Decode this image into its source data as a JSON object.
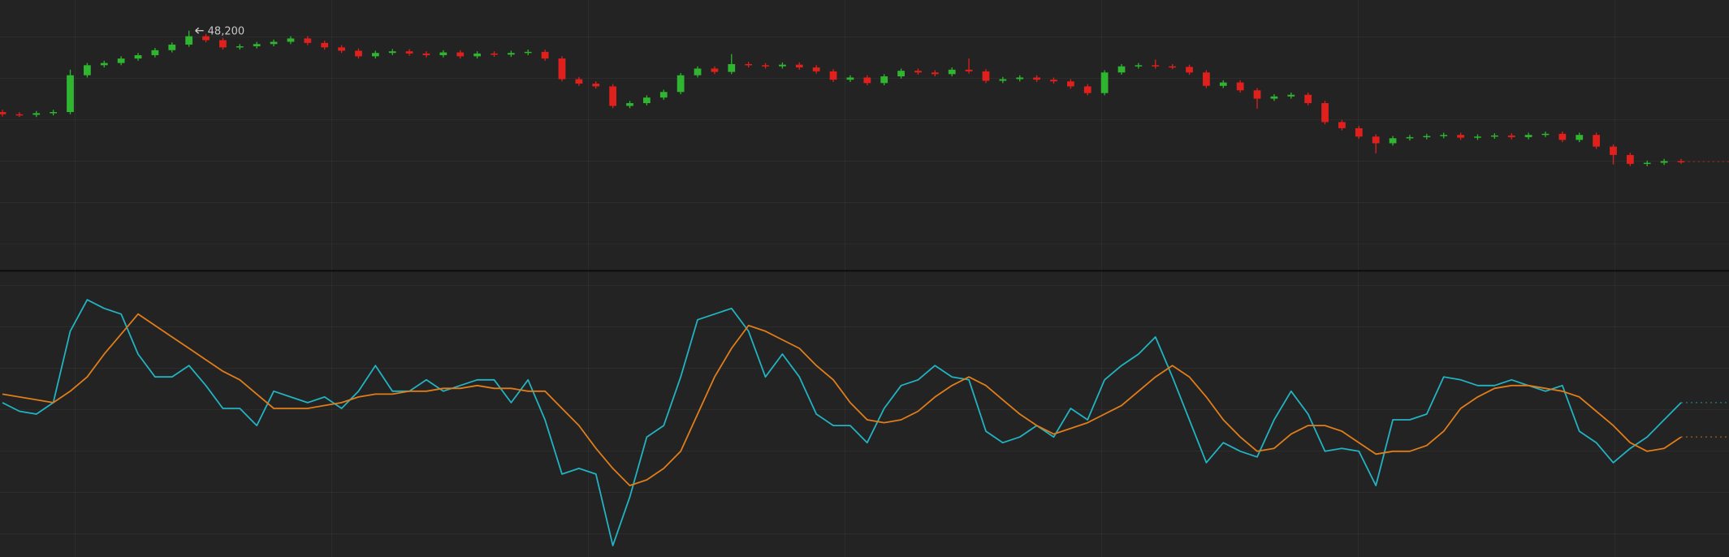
{
  "chart_data": [
    {
      "type": "candlestick",
      "up_color": "#2fb52f",
      "down_color": "#e0201c",
      "ylim": [
        43900,
        48750
      ],
      "annotations": [
        {
          "value": 48200,
          "label": "48,200"
        }
      ],
      "open": [
        46740,
        46700,
        46690,
        46720,
        46740,
        47400,
        47580,
        47620,
        47700,
        47760,
        47850,
        47950,
        48100,
        48030,
        47900,
        47920,
        47960,
        48000,
        48060,
        47980,
        47900,
        47840,
        47740,
        47800,
        47830,
        47790,
        47760,
        47810,
        47740,
        47790,
        47770,
        47800,
        47820,
        47700,
        47330,
        47250,
        47200,
        46850,
        46900,
        47000,
        47100,
        47400,
        47520,
        47460,
        47600,
        47580,
        47560,
        47590,
        47540,
        47470,
        47320,
        47360,
        47260,
        47380,
        47480,
        47450,
        47420,
        47500,
        47470,
        47300,
        47330,
        47360,
        47320,
        47290,
        47200,
        47080,
        47450,
        47560,
        47580,
        47560,
        47550,
        47450,
        47210,
        47270,
        47130,
        46980,
        47020,
        47050,
        46900,
        46560,
        46450,
        46300,
        46180,
        46270,
        46290,
        46310,
        46330,
        46280,
        46300,
        46320,
        46290,
        46330,
        46350,
        46240,
        46330,
        46120,
        45970,
        45810,
        45830,
        45860
      ],
      "high": [
        46780,
        46740,
        46760,
        46780,
        47500,
        47620,
        47660,
        47740,
        47800,
        47890,
        47990,
        48200,
        48140,
        48070,
        47960,
        48000,
        48040,
        48100,
        48100,
        48020,
        47940,
        47880,
        47840,
        47870,
        47870,
        47830,
        47850,
        47850,
        47830,
        47830,
        47840,
        47860,
        47860,
        47740,
        47370,
        47290,
        47240,
        46940,
        47040,
        47140,
        47440,
        47560,
        47560,
        47780,
        47640,
        47620,
        47630,
        47630,
        47580,
        47510,
        47400,
        47400,
        47420,
        47520,
        47520,
        47490,
        47540,
        47700,
        47510,
        47370,
        47400,
        47400,
        47360,
        47330,
        47240,
        47490,
        47600,
        47620,
        47680,
        47600,
        47590,
        47490,
        47310,
        47310,
        47170,
        47060,
        47090,
        47090,
        46940,
        46600,
        46490,
        46340,
        46310,
        46330,
        46350,
        46370,
        46370,
        46340,
        46360,
        46360,
        46370,
        46390,
        46390,
        46370,
        46370,
        46160,
        46010,
        45870,
        45900,
        45900
      ],
      "low": [
        46660,
        46650,
        46650,
        46680,
        46700,
        47360,
        47540,
        47580,
        47660,
        47720,
        47810,
        47910,
        47990,
        47860,
        47860,
        47880,
        47920,
        47960,
        47940,
        47860,
        47800,
        47700,
        47700,
        47760,
        47750,
        47720,
        47720,
        47700,
        47700,
        47730,
        47730,
        47760,
        47660,
        47290,
        47210,
        47160,
        46810,
        46810,
        46860,
        46960,
        47060,
        47360,
        47420,
        47420,
        47540,
        47520,
        47520,
        47500,
        47430,
        47280,
        47280,
        47220,
        47220,
        47340,
        47410,
        47380,
        47380,
        47430,
        47260,
        47260,
        47290,
        47280,
        47250,
        47160,
        47040,
        47040,
        47410,
        47520,
        47520,
        47510,
        47410,
        47170,
        47170,
        47090,
        46800,
        46940,
        46980,
        46860,
        46520,
        46410,
        46260,
        46000,
        46140,
        46230,
        46250,
        46270,
        46240,
        46240,
        46260,
        46250,
        46250,
        46290,
        46200,
        46200,
        46080,
        45800,
        45770,
        45770,
        45790,
        45810
      ],
      "close": [
        46700,
        46690,
        46720,
        46740,
        47400,
        47580,
        47620,
        47700,
        47760,
        47850,
        47950,
        48100,
        48030,
        47900,
        47920,
        47960,
        48000,
        48060,
        47980,
        47900,
        47840,
        47740,
        47800,
        47830,
        47790,
        47760,
        47810,
        47740,
        47790,
        47770,
        47800,
        47820,
        47700,
        47330,
        47250,
        47200,
        46850,
        46900,
        47000,
        47100,
        47400,
        47520,
        47460,
        47600,
        47580,
        47560,
        47590,
        47540,
        47470,
        47320,
        47360,
        47260,
        47380,
        47480,
        47450,
        47420,
        47500,
        47470,
        47300,
        47330,
        47360,
        47320,
        47290,
        47200,
        47080,
        47450,
        47560,
        47580,
        47560,
        47550,
        47450,
        47210,
        47270,
        47130,
        46980,
        47020,
        47050,
        46900,
        46560,
        46450,
        46300,
        46180,
        46270,
        46290,
        46310,
        46330,
        46280,
        46300,
        46320,
        46290,
        46330,
        46350,
        46240,
        46330,
        46120,
        45970,
        45810,
        45830,
        45860,
        45850
      ]
    },
    {
      "type": "line",
      "ylim": [
        0,
        100
      ],
      "series": [
        {
          "color": "#22b3c2",
          "values": [
            54,
            51,
            50,
            54,
            79,
            90,
            87,
            85,
            71,
            63,
            63,
            67,
            60,
            52,
            52,
            46,
            58,
            56,
            54,
            56,
            52,
            58,
            67,
            58,
            58,
            62,
            58,
            60,
            62,
            62,
            54,
            62,
            48,
            29,
            31,
            29,
            4,
            21,
            42,
            46,
            63,
            83,
            85,
            87,
            79,
            63,
            71,
            63,
            50,
            46,
            46,
            40,
            52,
            60,
            62,
            67,
            63,
            62,
            44,
            40,
            42,
            46,
            42,
            52,
            48,
            62,
            67,
            71,
            77,
            63,
            48,
            33,
            40,
            37,
            35,
            48,
            58,
            50,
            37,
            38,
            37,
            25,
            48,
            48,
            50,
            63,
            62,
            60,
            60,
            62,
            60,
            58,
            60,
            44,
            40,
            33,
            38,
            42,
            48,
            54
          ]
        },
        {
          "color": "#e07d1a",
          "values": [
            57,
            56,
            55,
            54,
            58,
            63,
            71,
            78,
            85,
            81,
            77,
            73,
            69,
            65,
            62,
            57,
            52,
            52,
            52,
            53,
            54,
            56,
            57,
            57,
            58,
            58,
            59,
            59,
            60,
            59,
            59,
            58,
            58,
            52,
            46,
            38,
            31,
            25,
            27,
            31,
            37,
            50,
            63,
            73,
            81,
            79,
            76,
            73,
            67,
            62,
            54,
            48,
            47,
            48,
            51,
            56,
            60,
            63,
            60,
            55,
            50,
            46,
            43,
            45,
            47,
            50,
            53,
            58,
            63,
            67,
            63,
            56,
            48,
            42,
            37,
            38,
            43,
            46,
            46,
            44,
            40,
            36,
            37,
            37,
            39,
            44,
            52,
            56,
            59,
            60,
            60,
            59,
            58,
            56,
            51,
            46,
            40,
            37,
            38,
            42
          ]
        }
      ]
    }
  ]
}
